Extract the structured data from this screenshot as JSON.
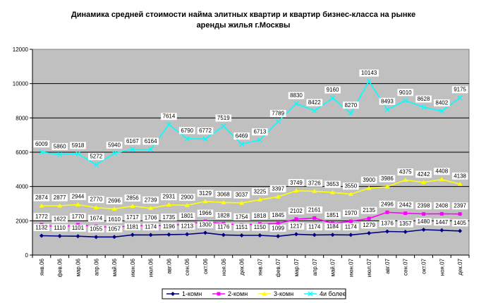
{
  "title": {
    "line1": "Динамика средней стоимости найма элитных квартир и  квартир бизнес-класса  на рынке",
    "line2": "аренды жилья г.Москвы"
  },
  "colors": {
    "plot_bg": "#c0c0c0",
    "series": [
      "#000080",
      "#ff00ff",
      "#ffff00",
      "#00ffff"
    ]
  },
  "chart_data": {
    "type": "line",
    "title": "Динамика средней стоимости найма элитных квартир и  квартир бизнес-класса  на рынке аренды жилья г.Москвы",
    "xlabel": "",
    "ylabel": "",
    "ylim": [
      0,
      12000
    ],
    "yticks": [
      0,
      2000,
      4000,
      6000,
      8000,
      10000,
      12000
    ],
    "grid": true,
    "legend": "bottom",
    "categories": [
      "янв.06",
      "фев.06",
      "мар.06",
      "апр.06",
      "май.06",
      "июн.06",
      "июл.06",
      "авг.06",
      "сен.06",
      "окт.06",
      "ноя.06",
      "дек.06",
      "янв.07",
      "фев.07",
      "мар.07",
      "апр.07",
      "май.07",
      "июн.07",
      "июл.07",
      "авг.07",
      "сен.07",
      "окт.07",
      "ноя.07",
      "дек.07"
    ],
    "series": [
      {
        "name": "1-комн",
        "values": [
          1132,
          1110,
          1101,
          1055,
          1057,
          1181,
          1174,
          1196,
          1213,
          1300,
          1176,
          1151,
          1150,
          1099,
          1217,
          1174,
          1184,
          1174,
          1279,
          1376,
          1357,
          1480,
          1447,
          1405
        ]
      },
      {
        "name": "2-комн",
        "values": [
          1772,
          1622,
          1770,
          1674,
          1610,
          1717,
          1706,
          1735,
          1801,
          1966,
          1828,
          1754,
          1818,
          1845,
          2102,
          2161,
          1851,
          1970,
          2135,
          2496,
          2442,
          2398,
          2408,
          2397
        ]
      },
      {
        "name": "3-комн",
        "values": [
          2874,
          2877,
          2944,
          2770,
          2696,
          2856,
          2739,
          2931,
          2900,
          3129,
          3068,
          3037,
          3225,
          3397,
          3749,
          3726,
          3653,
          3550,
          3900,
          3986,
          4375,
          4242,
          4408,
          4138
        ]
      },
      {
        "name": "4и более",
        "values": [
          6009,
          5860,
          5918,
          5272,
          5940,
          6167,
          6164,
          7614,
          6790,
          6772,
          7519,
          6469,
          6713,
          7789,
          8830,
          8422,
          9160,
          8270,
          10143,
          8493,
          9010,
          8628,
          8402,
          9175
        ]
      }
    ]
  }
}
